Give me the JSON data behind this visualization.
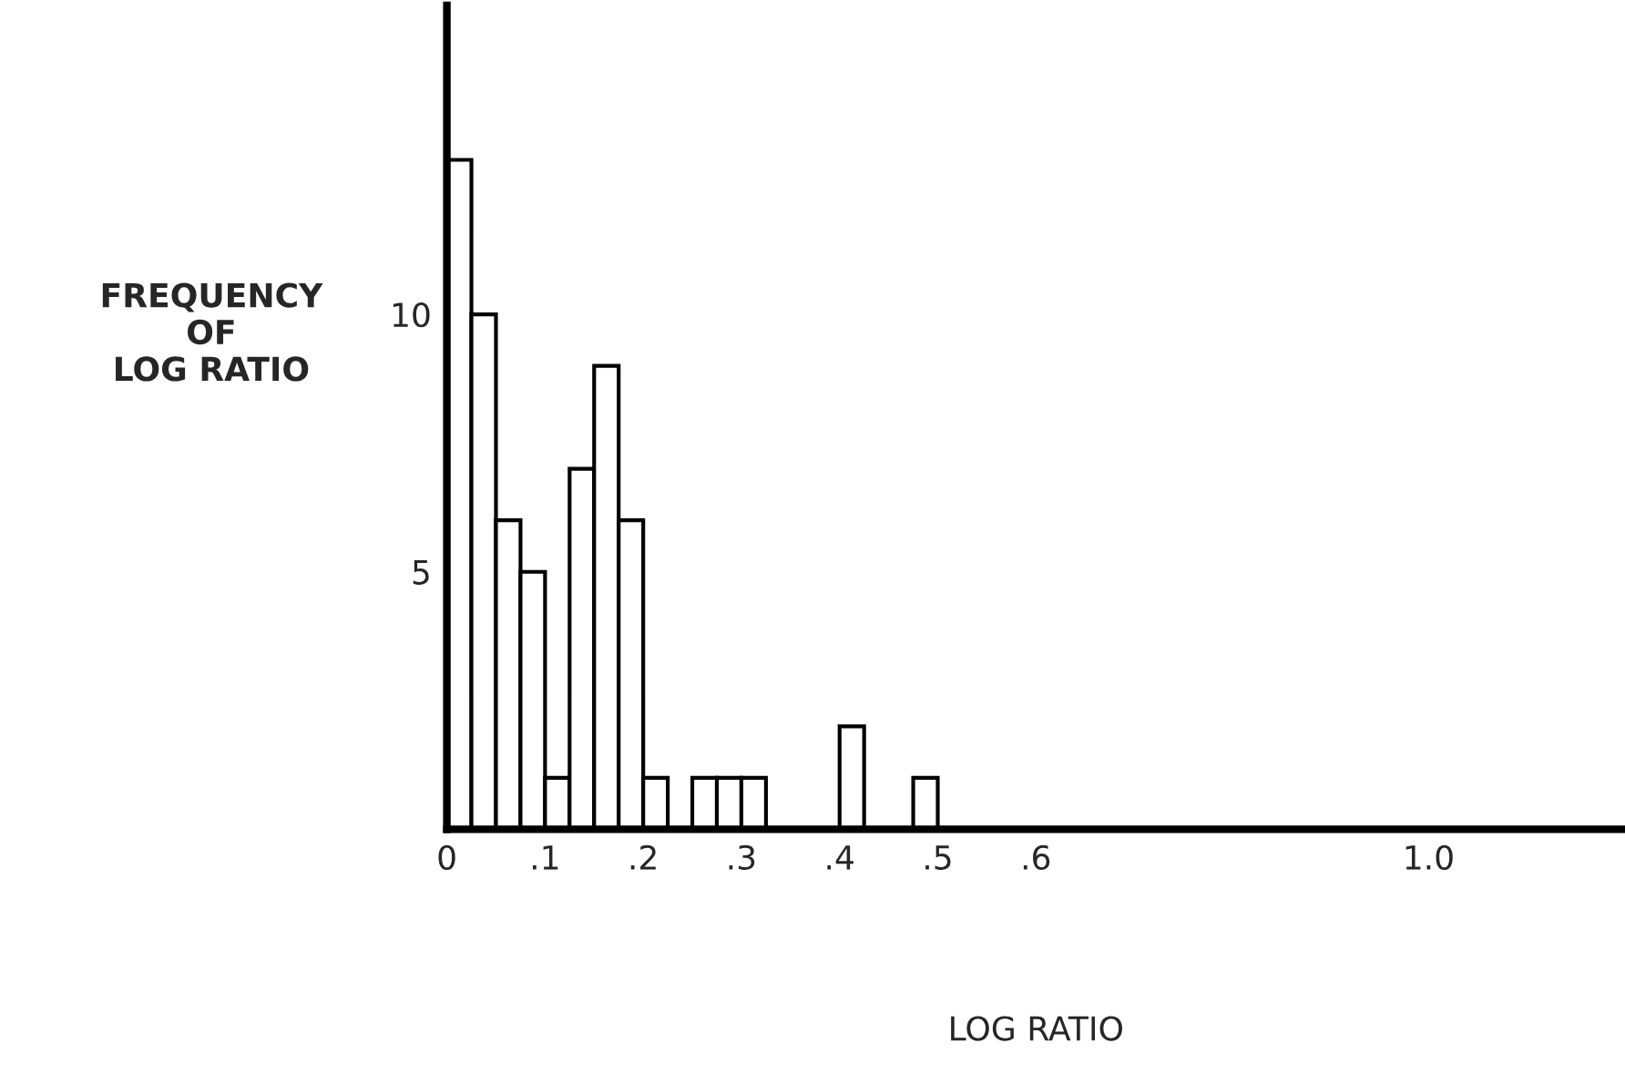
{
  "chart_data": {
    "type": "histogram",
    "xlabel": "LOG RATIO",
    "ylabel": "FREQUENCY\nOF\nLOG RATIO",
    "bins": [
      0,
      0.025,
      0.05,
      0.075,
      0.1,
      0.125,
      0.15,
      0.175,
      0.2,
      0.225,
      0.25,
      0.275,
      0.3,
      0.325,
      0.35,
      0.375,
      0.4,
      0.425,
      0.45,
      0.475,
      0.5
    ],
    "values": [
      13,
      10,
      6,
      5,
      1,
      7,
      9,
      6,
      1,
      0,
      1,
      1,
      1,
      0,
      0,
      0,
      2,
      0,
      0,
      1
    ],
    "color": "#ffffff",
    "xlim": [
      0,
      1.2
    ],
    "xticks": [
      {
        "value": 0,
        "label": "0"
      },
      {
        "value": 0.1,
        "label": ".1"
      },
      {
        "value": 0.2,
        "label": ".2"
      },
      {
        "value": 0.3,
        "label": ".3"
      },
      {
        "value": 0.4,
        "label": ".4"
      },
      {
        "value": 0.5,
        "label": ".5"
      },
      {
        "value": 0.6,
        "label": ".6"
      },
      {
        "value": 1.0,
        "label": "1.0"
      }
    ],
    "ylim": [
      0,
      16
    ],
    "yticks": [
      5,
      10
    ],
    "grid": false
  }
}
